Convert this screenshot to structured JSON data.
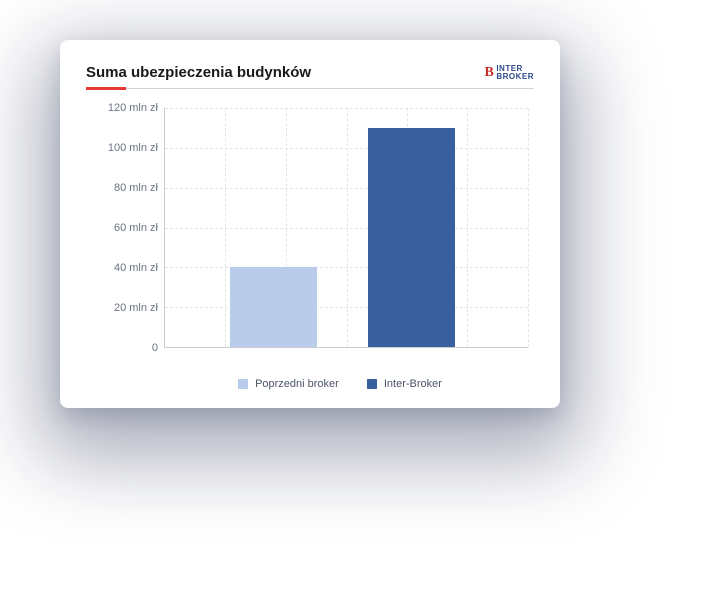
{
  "title": "Suma ubezpieczenia budynków",
  "logo": {
    "mark": "B",
    "line1": "INTER",
    "line2": "BROKER"
  },
  "chart": {
    "type": "bar",
    "ylim": [
      0,
      120
    ],
    "ytick_step": 20,
    "yticks": [
      {
        "v": 0,
        "label": "0"
      },
      {
        "v": 20,
        "label": "20 mln zł"
      },
      {
        "v": 40,
        "label": "40 mln zł"
      },
      {
        "v": 60,
        "label": "60 mln zł"
      },
      {
        "v": 80,
        "label": "80 mln zł"
      },
      {
        "v": 100,
        "label": "100 mln zł"
      },
      {
        "v": 120,
        "label": "120 mln zł"
      }
    ],
    "v_gridlines_pct": [
      16.6,
      33.3,
      50,
      66.6,
      83.3,
      100
    ],
    "series": [
      {
        "label": "Poprzedni broker",
        "value": 40,
        "color": "#b9cdea",
        "left_pct": 18,
        "width_pct": 24
      },
      {
        "label": "Inter-Broker",
        "value": 110,
        "color": "#3a5f9e",
        "left_pct": 56,
        "width_pct": 24
      }
    ],
    "grid_color": "#e2e5ea",
    "axis_color": "#c9cdd4",
    "background_color": "#ffffff",
    "label_fontsize": 11,
    "title_fontsize": 15,
    "underline_accent_color": "#e53935"
  }
}
